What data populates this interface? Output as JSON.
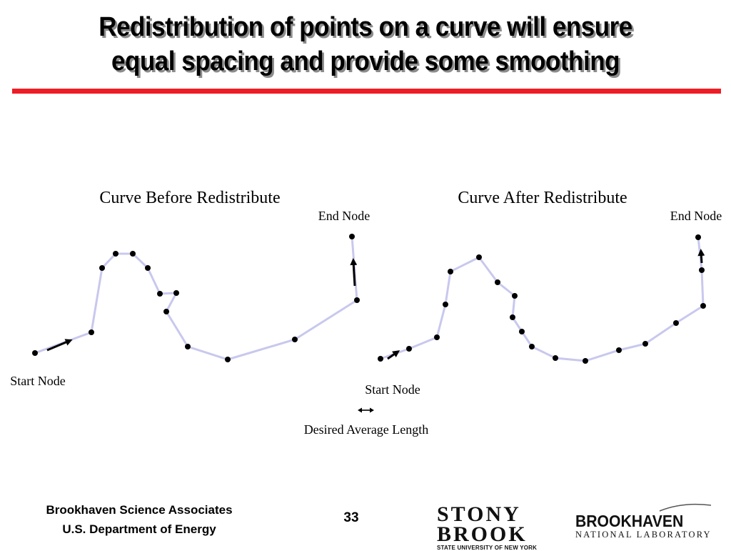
{
  "slide": {
    "title_line1": "Redistribution of points on a curve will ensure",
    "title_line2": "equal spacing and provide some smoothing",
    "page_number": "33"
  },
  "diagram": {
    "before": {
      "heading": "Curve Before Redistribute",
      "start_label": "Start Node",
      "end_label": "End Node"
    },
    "after": {
      "heading": "Curve After Redistribute",
      "start_label": "Start Node",
      "end_label": "End Node"
    },
    "legend_label": "Desired Average Length",
    "colors": {
      "curve": "#c8c8ee",
      "node": "#000000",
      "rule": "#ee1c24"
    }
  },
  "footer": {
    "org_line1": "Brookhaven Science Associates",
    "org_line2": "U.S. Department of Energy",
    "stony_brook_line1": "STONY",
    "stony_brook_line2": "BROOK",
    "stony_brook_sub": "STATE UNIVERSITY OF NEW YORK",
    "bnl_main": "BROOKHAVEN",
    "bnl_sub": "NATIONAL LABORATORY"
  }
}
